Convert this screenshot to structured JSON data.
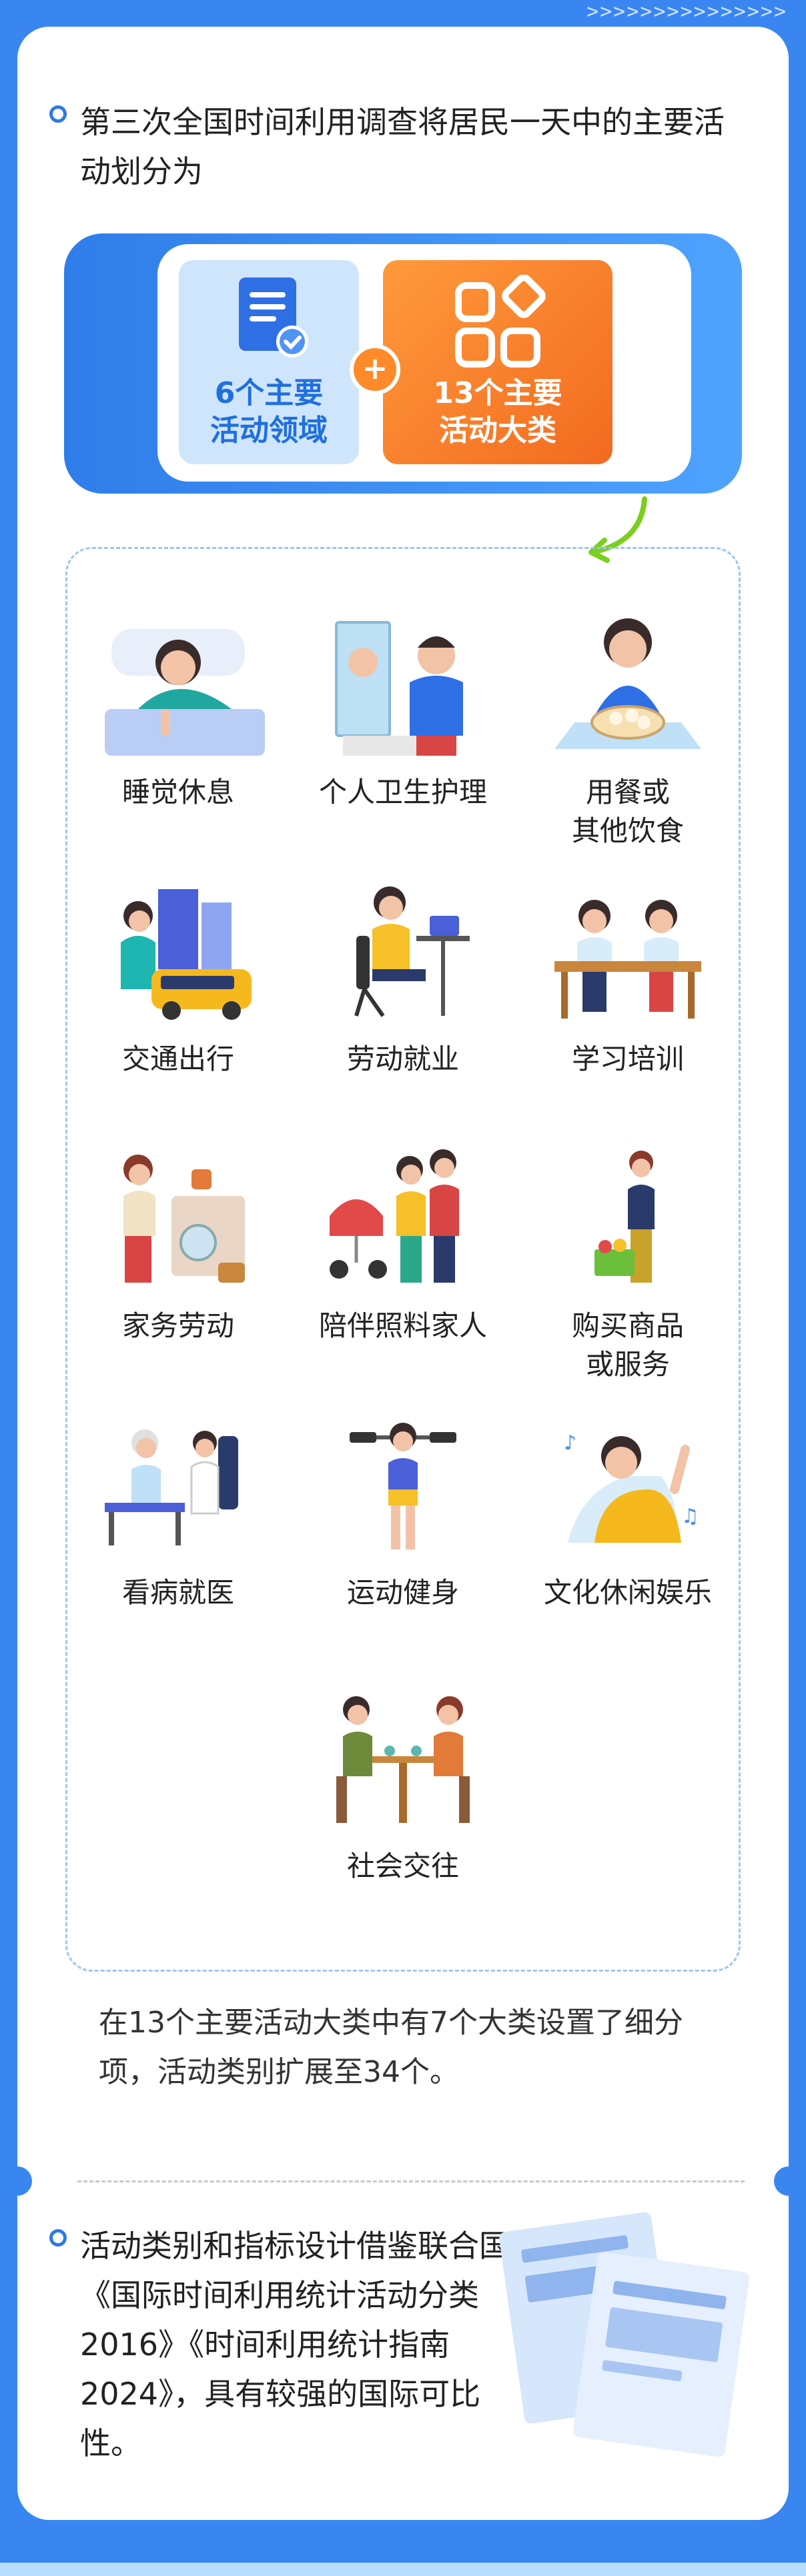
{
  "header": {
    "chevrons": ">>>>>>>>>>>>>>>"
  },
  "intro": {
    "text": "第三次全国时间利用调查将居民一天中的主要活动划分为"
  },
  "banner": {
    "left": {
      "label_line1": "6个主要",
      "label_line2": "活动领域",
      "icon": "document-check-icon"
    },
    "plus": "+",
    "right": {
      "label_line1": "13个主要",
      "label_line2": "活动大类",
      "icon": "category-grid-icon"
    }
  },
  "activities": [
    {
      "label": "睡觉休息",
      "icon": "sleeping-person-icon"
    },
    {
      "label": "个人卫生护理",
      "icon": "shaving-person-icon"
    },
    {
      "label": "用餐或\n其他饮食",
      "icon": "dining-person-icon"
    },
    {
      "label": "交通出行",
      "icon": "commuting-icon"
    },
    {
      "label": "劳动就业",
      "icon": "office-work-icon"
    },
    {
      "label": "学习培训",
      "icon": "studying-icon"
    },
    {
      "label": "家务劳动",
      "icon": "housework-icon"
    },
    {
      "label": "陪伴照料家人",
      "icon": "family-care-icon"
    },
    {
      "label": "购买商品\n或服务",
      "icon": "shopping-icon"
    },
    {
      "label": "看病就医",
      "icon": "doctor-visit-icon"
    },
    {
      "label": "运动健身",
      "icon": "fitness-icon"
    },
    {
      "label": "文化休闲娱乐",
      "icon": "music-leisure-icon"
    },
    {
      "label": "社会交往",
      "icon": "socializing-icon"
    }
  ],
  "summary": {
    "text": "在13个主要活动大类中有7个大类设置了细分项，活动类别扩展至34个。"
  },
  "reference": {
    "text": "活动类别和指标设计借鉴联合国《国际时间利用统计活动分类2016》《时间利用统计指南2024》，具有较强的国际可比性。"
  },
  "colors": {
    "primary": "#3a86f0",
    "orange": "#f26a1f",
    "light_blue": "#cfe5fb"
  }
}
